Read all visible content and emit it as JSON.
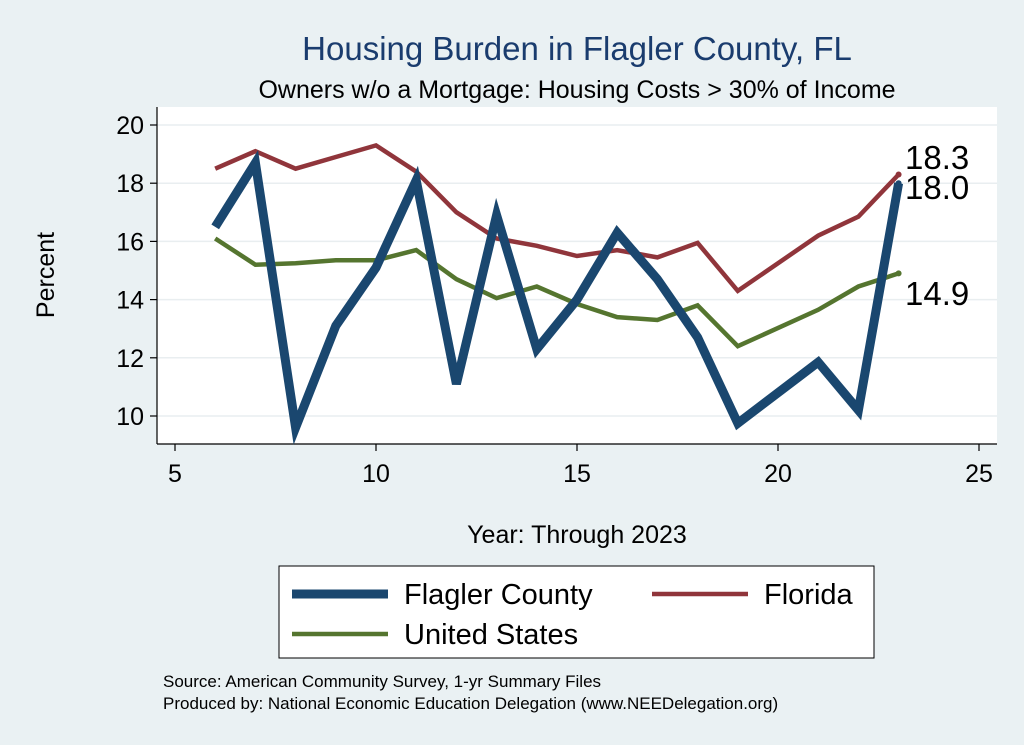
{
  "chart_data": {
    "type": "line",
    "title": "Housing Burden in Flagler County, FL",
    "subtitle": "Owners w/o a Mortgage: Housing Costs > 30% of Income",
    "xlabel": "Year: Through 2023",
    "ylabel": "Percent",
    "xlim": [
      5,
      25
    ],
    "ylim": [
      9,
      20.6
    ],
    "xticks": [
      "5",
      "10",
      "15",
      "20",
      "25"
    ],
    "yticks": [
      "10",
      "12",
      "14",
      "16",
      "18",
      "20"
    ],
    "grid": true,
    "legend_position": "bottom",
    "series": [
      {
        "name": "Flagler County",
        "color": "#1a476f",
        "x": [
          6,
          7,
          8,
          9,
          10,
          11,
          12,
          13,
          14,
          15,
          16,
          17,
          18,
          19,
          21,
          22,
          23
        ],
        "values": [
          16.5,
          18.7,
          9.6,
          13.1,
          15.1,
          18.1,
          11.1,
          16.9,
          12.3,
          14.0,
          16.3,
          14.7,
          12.7,
          9.75,
          11.85,
          10.2,
          18.0
        ],
        "end_label": "18.0"
      },
      {
        "name": "Florida",
        "color": "#90353b",
        "x": [
          6,
          7,
          8,
          9,
          10,
          11,
          12,
          13,
          14,
          15,
          16,
          17,
          18,
          19,
          21,
          22,
          23
        ],
        "values": [
          18.5,
          19.1,
          18.5,
          18.9,
          19.3,
          18.4,
          17.0,
          16.1,
          15.85,
          15.5,
          15.7,
          15.45,
          15.95,
          14.3,
          16.2,
          16.85,
          18.3
        ],
        "end_label": "18.3"
      },
      {
        "name": "United States",
        "color": "#55752f",
        "x": [
          6,
          7,
          8,
          9,
          10,
          11,
          12,
          13,
          14,
          15,
          16,
          17,
          18,
          19,
          21,
          22,
          23
        ],
        "values": [
          16.1,
          15.2,
          15.25,
          15.35,
          15.35,
          15.7,
          14.7,
          14.05,
          14.45,
          13.85,
          13.4,
          13.3,
          13.8,
          12.4,
          13.65,
          14.45,
          14.9
        ],
        "end_label": "14.9"
      }
    ],
    "notes": [
      "Source: American Community Survey, 1-yr Summary Files",
      "Produced by: National Economic Education Delegation (www.NEEDelegation.org)"
    ]
  }
}
